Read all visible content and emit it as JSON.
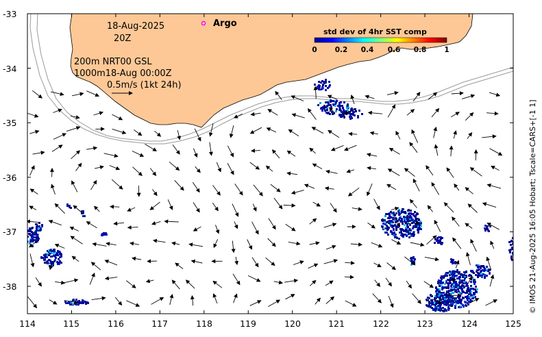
{
  "map": {
    "date": "18-Aug-2025",
    "hour": "20Z",
    "argo_label": "Argo",
    "line1": "200m  NRT00 GSL",
    "line2": "1000m18-Aug 00:00Z",
    "scale_text": "0.5m/s (1kt 24h)",
    "credit": "© IMOS 21-Aug-2025 16:05 Hobart; Tscale=CARS+[-1 1]",
    "colorbar": {
      "title": "std dev of 4hr SST comp",
      "ticks": [
        "0",
        "0.2",
        "0.4",
        "0.6",
        "0.8",
        "1"
      ]
    },
    "x_ticks": [
      "114",
      "115",
      "116",
      "117",
      "118",
      "119",
      "120",
      "121",
      "122",
      "123",
      "124",
      "125"
    ],
    "y_ticks": [
      "-33",
      "-34",
      "-35",
      "-36",
      "-37",
      "-38"
    ],
    "land_color": "#fdc896",
    "argo_color": "#ff00ff"
  }
}
